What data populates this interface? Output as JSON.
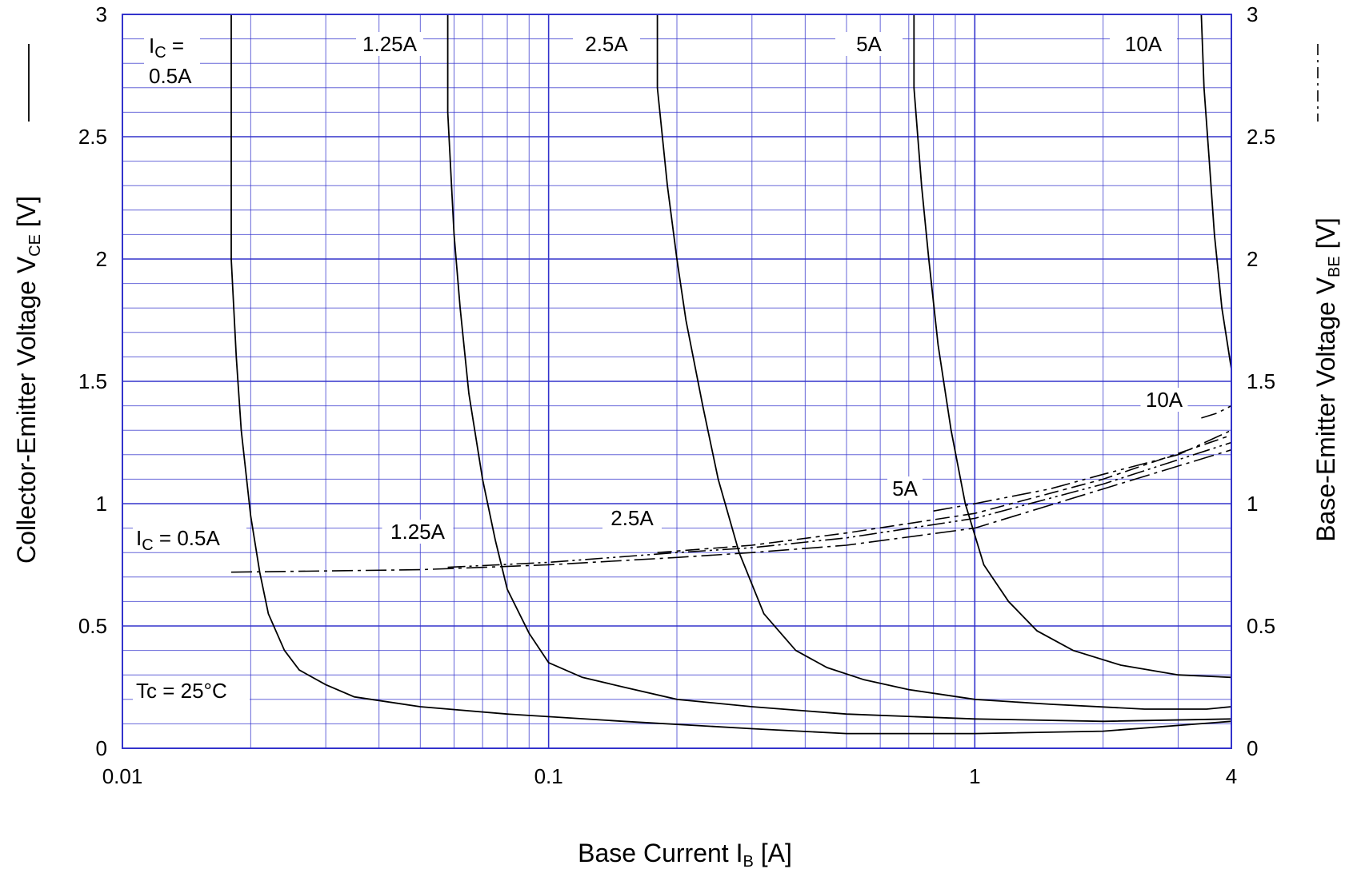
{
  "chart_data": {
    "type": "line",
    "x_scale": "log",
    "xlim": [
      0.01,
      4
    ],
    "ylim": [
      0,
      3
    ],
    "y2lim": [
      0,
      3
    ],
    "grid": true,
    "grid_color": "#3333cc",
    "x_ticks": [
      "0.01",
      "0.1",
      "1",
      "4"
    ],
    "y_ticks": [
      "0",
      "0.5",
      "1",
      "1.5",
      "2",
      "2.5",
      "3"
    ],
    "y2_ticks": [
      "0",
      "0.5",
      "1",
      "1.5",
      "2",
      "2.5",
      "3"
    ],
    "xlabel": {
      "main": "Base Current  I",
      "sub": "B",
      "tail": "  [A]"
    },
    "ylabel": {
      "main": "Collector-Emitter Voltage  V",
      "sub": "CE",
      "tail": " [V]"
    },
    "y2label": {
      "main": "Base-Emitter Voltage  V",
      "sub": "BE",
      "tail": " [V]"
    },
    "vce_labels": [
      {
        "text": "1.25A"
      },
      {
        "text": "2.5A"
      },
      {
        "text": "5A"
      },
      {
        "text": "10A"
      }
    ],
    "ic_top_label": {
      "line1_main": "I",
      "line1_sub": "C",
      "line1_tail": " =",
      "line2": "0.5A"
    },
    "vbe_labels": [
      {
        "main": "I",
        "sub": "C",
        "tail": " = 0.5A"
      },
      {
        "main": "1.25A"
      },
      {
        "main": "2.5A"
      },
      {
        "main": "5A"
      },
      {
        "main": "10A"
      }
    ],
    "temp_label": "Tc = 25°C",
    "legend_solid": "VCE",
    "legend_dashdot": "VBE",
    "series_vce": [
      {
        "ic": "0.5A",
        "points": [
          [
            0.018,
            3.0
          ],
          [
            0.018,
            2.0
          ],
          [
            0.0185,
            1.6
          ],
          [
            0.019,
            1.3
          ],
          [
            0.02,
            0.95
          ],
          [
            0.021,
            0.72
          ],
          [
            0.022,
            0.55
          ],
          [
            0.024,
            0.4
          ],
          [
            0.026,
            0.32
          ],
          [
            0.03,
            0.26
          ],
          [
            0.035,
            0.21
          ],
          [
            0.05,
            0.17
          ],
          [
            0.08,
            0.14
          ],
          [
            0.15,
            0.11
          ],
          [
            0.3,
            0.08
          ],
          [
            0.5,
            0.06
          ],
          [
            1.0,
            0.06
          ],
          [
            2.0,
            0.07
          ],
          [
            4.0,
            0.11
          ]
        ]
      },
      {
        "ic": "1.25A",
        "points": [
          [
            0.058,
            3.0
          ],
          [
            0.058,
            2.6
          ],
          [
            0.06,
            2.1
          ],
          [
            0.062,
            1.8
          ],
          [
            0.065,
            1.45
          ],
          [
            0.07,
            1.1
          ],
          [
            0.075,
            0.85
          ],
          [
            0.08,
            0.65
          ],
          [
            0.09,
            0.47
          ],
          [
            0.1,
            0.35
          ],
          [
            0.12,
            0.29
          ],
          [
            0.15,
            0.25
          ],
          [
            0.2,
            0.2
          ],
          [
            0.3,
            0.17
          ],
          [
            0.5,
            0.14
          ],
          [
            1.0,
            0.12
          ],
          [
            2.0,
            0.11
          ],
          [
            4.0,
            0.12
          ]
        ]
      },
      {
        "ic": "2.5A",
        "points": [
          [
            0.18,
            3.0
          ],
          [
            0.18,
            2.7
          ],
          [
            0.19,
            2.3
          ],
          [
            0.2,
            2.0
          ],
          [
            0.21,
            1.75
          ],
          [
            0.23,
            1.4
          ],
          [
            0.25,
            1.1
          ],
          [
            0.28,
            0.8
          ],
          [
            0.32,
            0.55
          ],
          [
            0.38,
            0.4
          ],
          [
            0.45,
            0.33
          ],
          [
            0.55,
            0.28
          ],
          [
            0.7,
            0.24
          ],
          [
            1.0,
            0.2
          ],
          [
            1.5,
            0.18
          ],
          [
            2.5,
            0.16
          ],
          [
            3.5,
            0.16
          ],
          [
            4.0,
            0.17
          ]
        ]
      },
      {
        "ic": "5A",
        "points": [
          [
            0.72,
            3.0
          ],
          [
            0.72,
            2.7
          ],
          [
            0.75,
            2.3
          ],
          [
            0.78,
            2.0
          ],
          [
            0.82,
            1.65
          ],
          [
            0.88,
            1.3
          ],
          [
            0.95,
            1.0
          ],
          [
            1.05,
            0.75
          ],
          [
            1.2,
            0.6
          ],
          [
            1.4,
            0.48
          ],
          [
            1.7,
            0.4
          ],
          [
            2.2,
            0.34
          ],
          [
            3.0,
            0.3
          ],
          [
            4.0,
            0.29
          ]
        ]
      },
      {
        "ic": "10A",
        "points": [
          [
            3.4,
            3.0
          ],
          [
            3.45,
            2.7
          ],
          [
            3.55,
            2.4
          ],
          [
            3.65,
            2.1
          ],
          [
            3.8,
            1.8
          ],
          [
            4.0,
            1.55
          ]
        ]
      }
    ],
    "series_vbe": [
      {
        "ic": "0.5A",
        "points": [
          [
            0.018,
            0.72
          ],
          [
            0.05,
            0.73
          ],
          [
            0.1,
            0.75
          ],
          [
            0.2,
            0.78
          ],
          [
            0.3,
            0.8
          ],
          [
            0.5,
            0.83
          ],
          [
            1.0,
            0.9
          ],
          [
            2.0,
            1.06
          ],
          [
            4.0,
            1.22
          ]
        ]
      },
      {
        "ic": "1.25A",
        "points": [
          [
            0.058,
            0.74
          ],
          [
            0.1,
            0.76
          ],
          [
            0.2,
            0.8
          ],
          [
            0.3,
            0.82
          ],
          [
            0.5,
            0.86
          ],
          [
            1.0,
            0.94
          ],
          [
            2.0,
            1.08
          ],
          [
            4.0,
            1.25
          ]
        ]
      },
      {
        "ic": "2.5A",
        "points": [
          [
            0.18,
            0.8
          ],
          [
            0.3,
            0.83
          ],
          [
            0.5,
            0.88
          ],
          [
            1.0,
            0.96
          ],
          [
            2.0,
            1.1
          ],
          [
            4.0,
            1.28
          ]
        ]
      },
      {
        "ic": "5A",
        "points": [
          [
            0.8,
            0.97
          ],
          [
            1.0,
            1.0
          ],
          [
            1.5,
            1.06
          ],
          [
            2.0,
            1.12
          ],
          [
            3.0,
            1.2
          ],
          [
            4.0,
            1.3
          ]
        ]
      },
      {
        "ic": "10A",
        "points": [
          [
            3.4,
            1.35
          ],
          [
            3.7,
            1.37
          ],
          [
            4.0,
            1.4
          ]
        ]
      }
    ]
  }
}
